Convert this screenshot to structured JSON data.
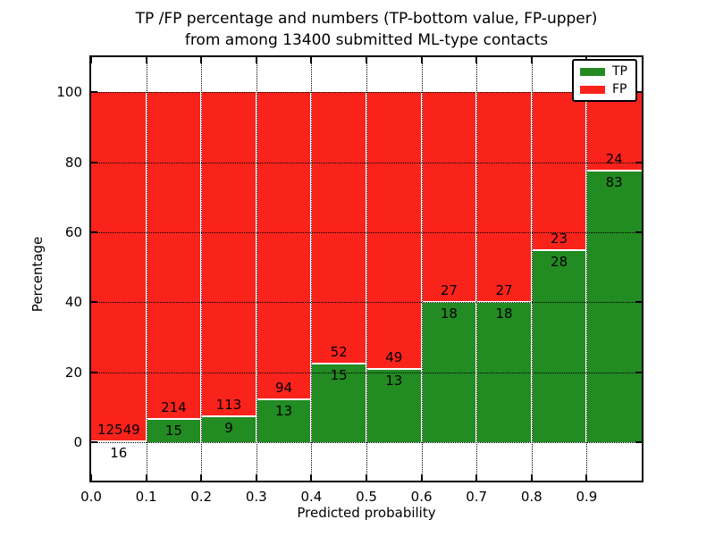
{
  "chart_data": {
    "type": "bar",
    "stacked": true,
    "normalized_to_percent": true,
    "title_lines": [
      "TP /FP percentage and numbers (TP-bottom value, FP-upper)",
      "from among 13400 submitted ML-type contacts"
    ],
    "xlabel": "Predicted probability",
    "ylabel": "Percentage",
    "categories": [
      "0.0-0.1",
      "0.1-0.2",
      "0.2-0.3",
      "0.3-0.4",
      "0.4-0.5",
      "0.5-0.6",
      "0.6-0.7",
      "0.7-0.8",
      "0.8-0.9",
      "0.9-1.0"
    ],
    "series": [
      {
        "name": "TP",
        "color": "#228b22",
        "counts": [
          16,
          15,
          9,
          13,
          15,
          13,
          18,
          18,
          28,
          83
        ]
      },
      {
        "name": "FP",
        "color": "#fa231c",
        "counts": [
          12549,
          214,
          113,
          94,
          52,
          49,
          27,
          27,
          23,
          24
        ]
      }
    ],
    "bar_edge_color": "#ffffff",
    "xticks": [
      "0.0",
      "0.1",
      "0.2",
      "0.3",
      "0.4",
      "0.5",
      "0.6",
      "0.7",
      "0.8",
      "0.9"
    ],
    "yticks": [
      0,
      20,
      40,
      60,
      80,
      100
    ],
    "xlim": [
      0.0,
      1.0
    ],
    "ylim": [
      -11,
      110
    ],
    "grid": "dotted",
    "legend_position": "upper right"
  }
}
